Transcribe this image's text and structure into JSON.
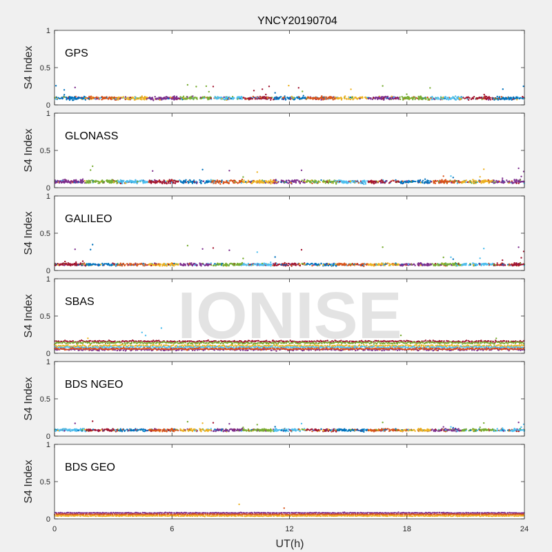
{
  "figure": {
    "title": "YNCY20190704",
    "xlabel": "UT(h)",
    "watermark": "IONISE"
  },
  "chart_data": [
    {
      "type": "scatter",
      "label": "GPS",
      "ylabel": "S4 Index",
      "xlim": [
        0,
        24
      ],
      "ylim": [
        0,
        1
      ],
      "xticks": [
        "0",
        "6",
        "12",
        "18",
        "24"
      ],
      "yticks": [
        "0",
        "0.5",
        "1"
      ],
      "colors": [
        "#0072bd",
        "#d95319",
        "#edb120",
        "#7e2f8e",
        "#77ac30",
        "#4dbeee",
        "#a2142f"
      ],
      "baseline_s4": 0.09,
      "spread": 0.03,
      "max_s4": 0.28
    },
    {
      "type": "scatter",
      "label": "GLONASS",
      "ylabel": "S4 Index",
      "xlim": [
        0,
        24
      ],
      "ylim": [
        0,
        1
      ],
      "xticks": [
        "0",
        "6",
        "12",
        "18",
        "24"
      ],
      "yticks": [
        "0",
        "0.5",
        "1"
      ],
      "colors": [
        "#0072bd",
        "#d95319",
        "#edb120",
        "#7e2f8e",
        "#77ac30",
        "#4dbeee",
        "#a2142f"
      ],
      "baseline_s4": 0.08,
      "spread": 0.035,
      "max_s4": 0.29
    },
    {
      "type": "scatter",
      "label": "GALILEO",
      "ylabel": "S4 Index",
      "xlim": [
        0,
        24
      ],
      "ylim": [
        0,
        1
      ],
      "xticks": [
        "0",
        "6",
        "12",
        "18",
        "24"
      ],
      "yticks": [
        "0",
        "0.5",
        "1"
      ],
      "colors": [
        "#0072bd",
        "#d95319",
        "#edb120",
        "#7e2f8e",
        "#77ac30",
        "#4dbeee",
        "#a2142f"
      ],
      "baseline_s4": 0.08,
      "spread": 0.025,
      "max_s4": 0.35
    },
    {
      "type": "scatter",
      "label": "SBAS",
      "ylabel": "S4 Index",
      "xlim": [
        0,
        24
      ],
      "ylim": [
        0,
        1
      ],
      "xticks": [
        "0",
        "6",
        "12",
        "18",
        "24"
      ],
      "yticks": [
        "0",
        "0.5",
        "1"
      ],
      "colors": [
        "#a2142f",
        "#77ac30",
        "#edb120",
        "#4dbeee",
        "#7e2f8e",
        "#d95319"
      ],
      "levels_s4": [
        0.16,
        0.14,
        0.1,
        0.08,
        0.05,
        0.06
      ],
      "spread": 0.02,
      "max_s4": 0.34
    },
    {
      "type": "scatter",
      "label": "BDS NGEO",
      "ylabel": "S4 Index",
      "xlim": [
        0,
        24
      ],
      "ylim": [
        0,
        1
      ],
      "xticks": [
        "0",
        "6",
        "12",
        "18",
        "24"
      ],
      "yticks": [
        "0",
        "0.5",
        "1"
      ],
      "colors": [
        "#0072bd",
        "#d95319",
        "#edb120",
        "#7e2f8e",
        "#77ac30",
        "#4dbeee",
        "#a2142f"
      ],
      "baseline_s4": 0.08,
      "spread": 0.025,
      "max_s4": 0.2
    },
    {
      "type": "scatter",
      "label": "BDS GEO",
      "ylabel": "S4 Index",
      "xlim": [
        0,
        24
      ],
      "ylim": [
        0,
        1
      ],
      "xticks": [
        "0",
        "6",
        "12",
        "18",
        "24"
      ],
      "yticks": [
        "0",
        "0.5",
        "1"
      ],
      "colors": [
        "#7e2f8e",
        "#d95319",
        "#edb120"
      ],
      "levels_s4": [
        0.08,
        0.06,
        0.04
      ],
      "spread": 0.008,
      "max_s4": 0.2
    }
  ]
}
